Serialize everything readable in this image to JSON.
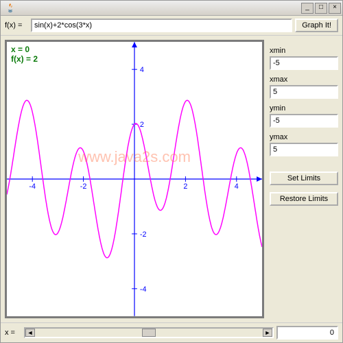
{
  "window": {
    "title": ""
  },
  "toolbar": {
    "fx_label": "f(x) = ",
    "fx_value": "sin(x)+2*cos(3*x)",
    "graph_button": "Graph It!"
  },
  "plot": {
    "info_line1": "x = 0",
    "info_line2": "f(x) = 2",
    "watermark": "www.java2s.com",
    "axis_color": "#0000ff",
    "curve_color": "#ff00ff",
    "background": "#ffffff",
    "xlim": [
      -5,
      5
    ],
    "ylim": [
      -5,
      5
    ],
    "xticks": [
      -4,
      -2,
      2,
      4
    ],
    "yticks": [
      -4,
      -2,
      2,
      4
    ],
    "tick_fontsize": 11,
    "function": "sin(x)+2*cos(3*x)",
    "samples": 400
  },
  "limits": {
    "xmin_label": "xmin",
    "xmin": "-5",
    "xmax_label": "xmax",
    "xmax": "5",
    "ymin_label": "ymin",
    "ymin": "-5",
    "ymax_label": "ymax",
    "ymax": "5",
    "set_button": "Set Limits",
    "restore_button": "Restore Limits"
  },
  "status": {
    "x_label": "x = ",
    "x_value": "0",
    "scroll_pos": 0.5,
    "scroll_thumb_width": 0.06
  }
}
